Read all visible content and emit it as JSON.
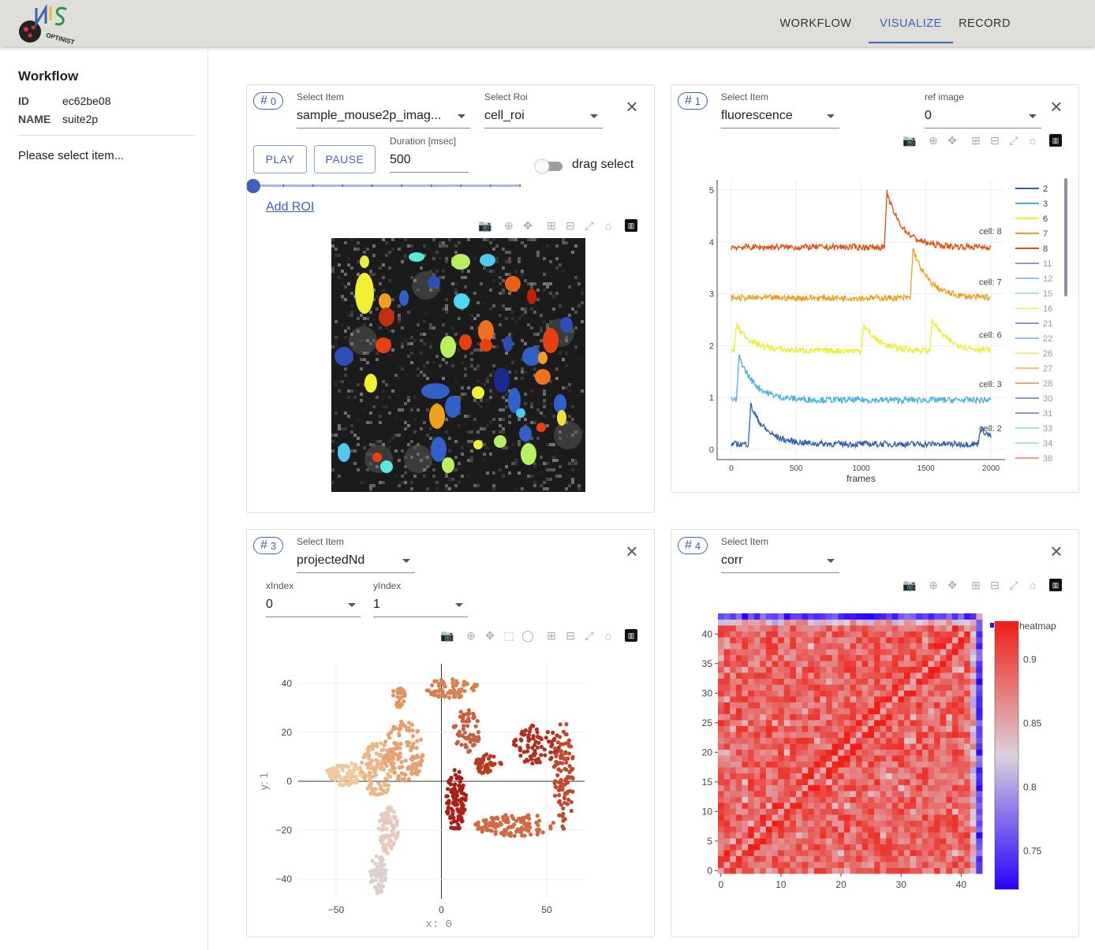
{
  "nav": {
    "workflow": "WORKFLOW",
    "visualize": "VISUALIZE",
    "record": "RECORD"
  },
  "logo": {
    "text": "OPTINIST",
    "letters": "NIS"
  },
  "sidebar": {
    "title": "Workflow",
    "id_key": "ID",
    "id_value": "ec62be08",
    "name_key": "NAME",
    "name_value": "suite2p",
    "message": "Please select item..."
  },
  "panel0": {
    "badge": "0",
    "item_label": "Select Item",
    "item_value": "sample_mouse2p_imag...",
    "roi_label": "Select Roi",
    "roi_value": "cell_roi",
    "play": "PLAY",
    "pause": "PAUSE",
    "duration_label": "Duration [msec]",
    "duration_value": "500",
    "drag_select": "drag select",
    "add_roi": "Add ROI"
  },
  "panel1": {
    "badge": "1",
    "item_label": "Select Item",
    "item_value": "fluorescence",
    "ref_label": "ref image",
    "ref_value": "0"
  },
  "panel3": {
    "badge": "3",
    "item_label": "Select Item",
    "item_value": "projectedNd",
    "xindex_label": "xIndex",
    "xindex_value": "0",
    "yindex_label": "yIndex",
    "yindex_value": "1"
  },
  "panel4": {
    "badge": "4",
    "item_label": "Select Item",
    "item_value": "corr"
  },
  "colors": {
    "accent": "#3f63b5"
  },
  "chart_data": [
    {
      "type": "line",
      "xlabel": "frames",
      "xticks": [
        0,
        500,
        1000,
        1500,
        2000
      ],
      "yticks": [
        0,
        1,
        2,
        3,
        4,
        5
      ],
      "xlim": [
        0,
        2000
      ],
      "ylim": [
        -0.2,
        5.2
      ],
      "series": [
        {
          "name": "cell: 2",
          "color": "#2f5fb0",
          "offset": 0.1,
          "peaks": [
            [
              150,
              0.75
            ],
            [
              1920,
              0.3
            ]
          ]
        },
        {
          "name": "cell: 3",
          "color": "#47b0e0",
          "offset": 0.95,
          "peaks": [
            [
              60,
              0.85
            ]
          ]
        },
        {
          "name": "cell: 6",
          "color": "#e8f03a",
          "offset": 1.9,
          "peaks": [
            [
              40,
              0.5
            ],
            [
              1020,
              0.5
            ],
            [
              1550,
              0.6
            ]
          ]
        },
        {
          "name": "cell: 7",
          "color": "#f0a020",
          "offset": 2.92,
          "peaks": [
            [
              1400,
              0.95
            ]
          ]
        },
        {
          "name": "cell: 8",
          "color": "#e05010",
          "offset": 3.9,
          "peaks": [
            [
              1200,
              1.05
            ]
          ]
        }
      ],
      "legend": [
        {
          "name": "2",
          "color": "#2f5fb0"
        },
        {
          "name": "3",
          "color": "#47b0e0"
        },
        {
          "name": "6",
          "color": "#e8f03a"
        },
        {
          "name": "7",
          "color": "#f0a020"
        },
        {
          "name": "8",
          "color": "#e05010"
        },
        {
          "name": "11",
          "color": "#8a9ad6"
        },
        {
          "name": "12",
          "color": "#9ac0e8"
        },
        {
          "name": "15",
          "color": "#a8e0f0"
        },
        {
          "name": "16",
          "color": "#eef088"
        },
        {
          "name": "21",
          "color": "#9a90d0"
        },
        {
          "name": "22",
          "color": "#9ac0e8"
        },
        {
          "name": "26",
          "color": "#eef088"
        },
        {
          "name": "27",
          "color": "#f0c080"
        },
        {
          "name": "28",
          "color": "#f0a080"
        },
        {
          "name": "30",
          "color": "#8a9ad6"
        },
        {
          "name": "31",
          "color": "#9a90d0"
        },
        {
          "name": "33",
          "color": "#a8e0f0"
        },
        {
          "name": "34",
          "color": "#a8e0f0"
        },
        {
          "name": "38",
          "color": "#f0a080"
        }
      ],
      "legend_placement": "right"
    },
    {
      "type": "scatter",
      "xlabel": "x: 0",
      "ylabel": "y: 1",
      "xticks": [
        -50,
        0,
        50
      ],
      "yticks": [
        -40,
        -20,
        0,
        20,
        40
      ],
      "xlim": [
        -68,
        68
      ],
      "ylim": [
        -48,
        48
      ]
    },
    {
      "type": "heatmap",
      "xticks": [
        0,
        10,
        20,
        30,
        40
      ],
      "yticks": [
        0,
        5,
        10,
        15,
        20,
        25,
        30,
        35,
        40
      ],
      "size": 44,
      "colorbar_title": "heatmap",
      "colorbar_ticks": [
        0.75,
        0.8,
        0.85,
        0.9
      ],
      "zlim": [
        0.72,
        0.93
      ]
    }
  ]
}
